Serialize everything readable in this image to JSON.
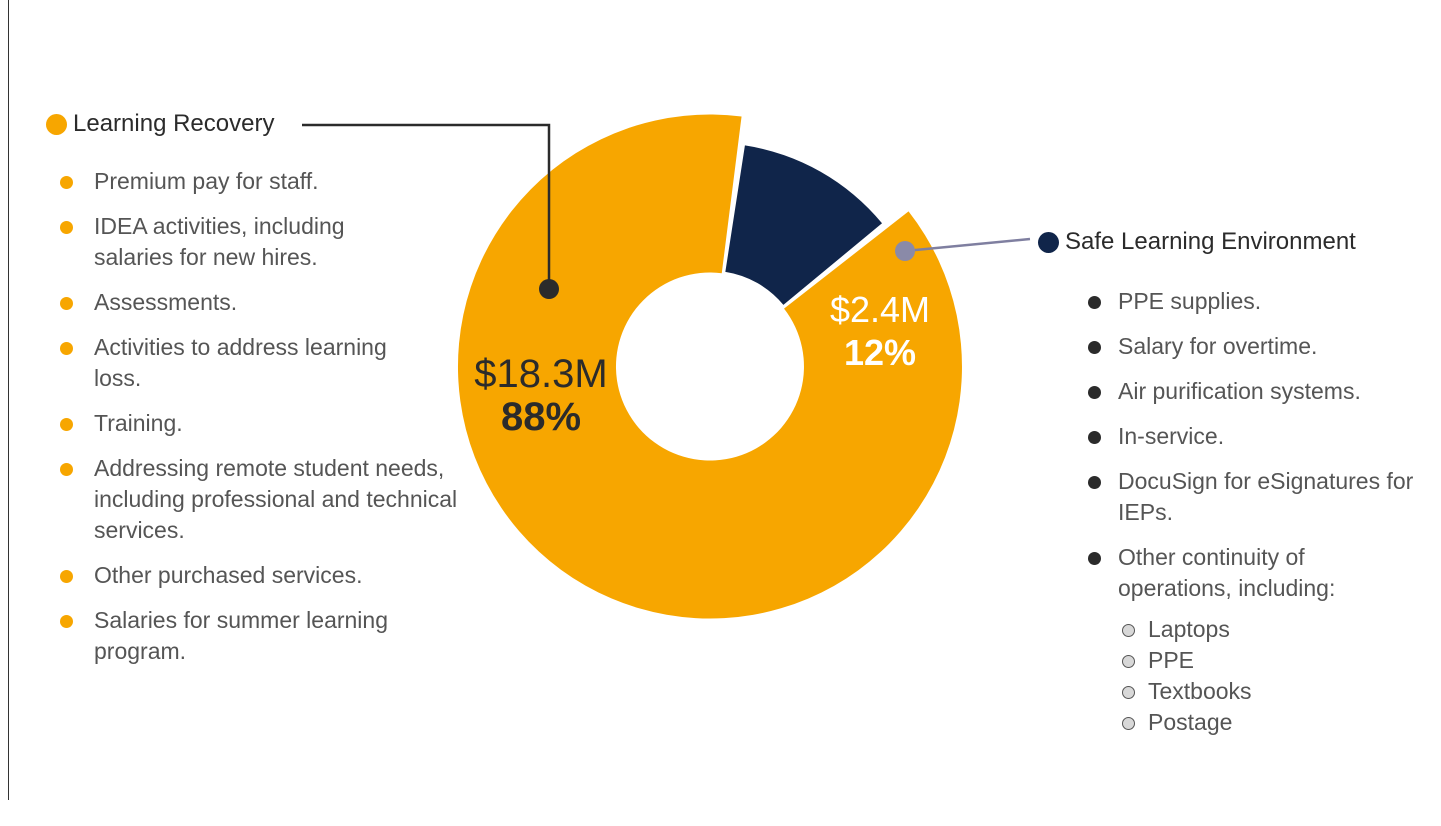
{
  "chart_data": {
    "type": "pie",
    "donut": true,
    "series": [
      {
        "name": "Learning Recovery",
        "amount_label": "$18.3M",
        "percent_label": "88%",
        "value": 88,
        "color": "#f7a600"
      },
      {
        "name": "Safe Learning Environment",
        "amount_label": "$2.4M",
        "percent_label": "12%",
        "value": 12,
        "color": "#10254a"
      }
    ]
  },
  "learning_recovery": {
    "title": "Learning Recovery",
    "items": [
      "Premium pay for staff.",
      "IDEA activities, including salaries for new hires.",
      "Assessments.",
      "Activities to address learning loss.",
      "Training.",
      "Addressing remote student needs, including professional and technical services.",
      "Other purchased services.",
      "Salaries for summer learning program."
    ]
  },
  "safe_environment": {
    "title": "Safe Learning Environment",
    "items": [
      "PPE supplies.",
      "Salary for overtime.",
      "Air purification systems.",
      "In-service.",
      "DocuSign for eSignatures for IEPs.",
      "Other continuity of operations, including:"
    ],
    "sub_items": [
      "Laptops",
      "PPE",
      "Textbooks",
      "Postage"
    ]
  }
}
